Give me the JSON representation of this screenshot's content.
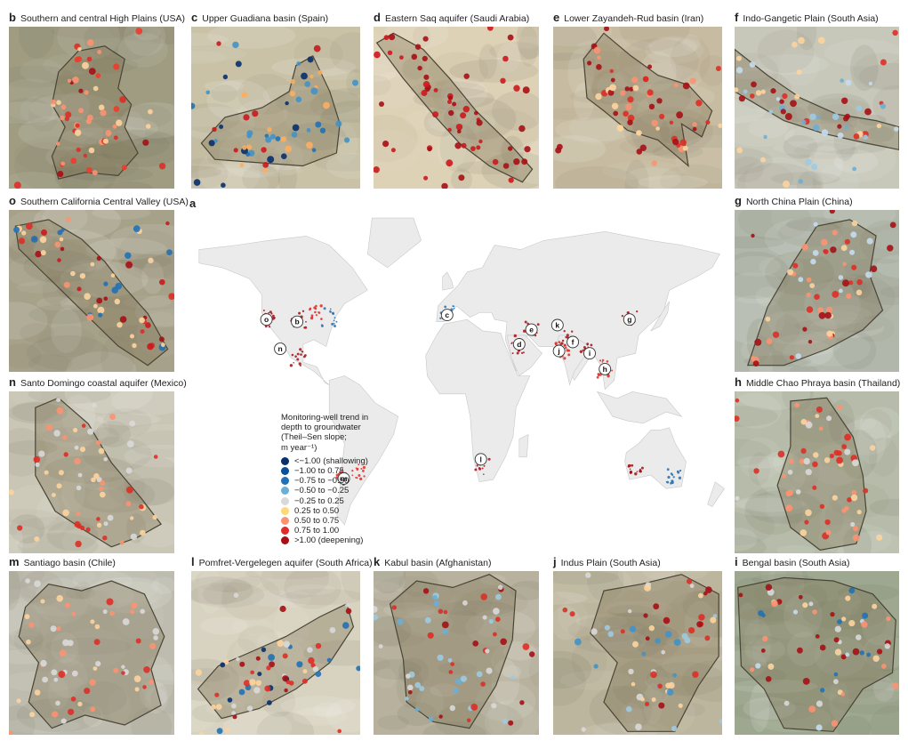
{
  "panels": [
    {
      "id": "b",
      "letter": "b",
      "title": "Southern and central High Plains (USA)",
      "bg": "#9f9c82",
      "shape": "highplains",
      "palette": [
        "#a50f15",
        "#de2d26",
        "#fc9272",
        "#fdd49e",
        "#ef3b2c"
      ]
    },
    {
      "id": "c",
      "letter": "c",
      "title": "Upper Guadiana basin (Spain)",
      "bg": "#c9c2a7",
      "shape": "guadiana",
      "palette": [
        "#08306b",
        "#2171b5",
        "#4292c6",
        "#cb181d",
        "#fdae61"
      ]
    },
    {
      "id": "d",
      "letter": "d",
      "title": "Eastern Saq aquifer (Saudi Arabia)",
      "bg": "#ddd1b6",
      "shape": "saq",
      "palette": [
        "#a50f15",
        "#cb181d"
      ]
    },
    {
      "id": "e",
      "letter": "e",
      "title": "Lower Zayandeh-Rud basin (Iran)",
      "bg": "#c7bca1",
      "shape": "zayandeh",
      "palette": [
        "#a50f15",
        "#de2d26",
        "#fc9272",
        "#fdd49e"
      ]
    },
    {
      "id": "f",
      "letter": "f",
      "title": "Indo-Gangetic Plain (South Asia)",
      "bg": "#c7c8ba",
      "shape": "gangetic",
      "palette": [
        "#a50f15",
        "#de2d26",
        "#9ecae1",
        "#c6dbef",
        "#fdd49e",
        "#6baed6"
      ]
    },
    {
      "id": "o",
      "letter": "o",
      "title": "Southern California Central Valley (USA)",
      "bg": "#a6a189",
      "shape": "california",
      "palette": [
        "#a50f15",
        "#de2d26",
        "#cb181d",
        "#fc9272",
        "#fdd49e",
        "#2171b5"
      ]
    },
    {
      "id": "g",
      "letter": "g",
      "title": "North China Plain (China)",
      "bg": "#b1b8ab",
      "shape": "northchina",
      "palette": [
        "#a50f15",
        "#de2d26",
        "#fc9272",
        "#c6dbef",
        "#fdd49e"
      ]
    },
    {
      "id": "n",
      "letter": "n",
      "title": "Santo Domingo coastal aquifer (Mexico)",
      "bg": "#c9c6b5",
      "shape": "santodomingo",
      "palette": [
        "#d9d9d9",
        "#fdd49e",
        "#fc9272",
        "#de2d26"
      ]
    },
    {
      "id": "h",
      "letter": "h",
      "title": "Middle Chao Phraya basin (Thailand)",
      "bg": "#b6bca9",
      "shape": "chaophraya",
      "palette": [
        "#fc9272",
        "#de2d26",
        "#d9d9d9",
        "#fdd49e"
      ]
    },
    {
      "id": "m",
      "letter": "m",
      "title": "Santiago basin (Chile)",
      "bg": "#bdbcae",
      "shape": "santiago",
      "palette": [
        "#de2d26",
        "#fc9272",
        "#fdd49e",
        "#d9d9d9"
      ]
    },
    {
      "id": "l",
      "letter": "l",
      "title": "Pomfret-Vergelegen aquifer (South Africa)",
      "bg": "#d8d3c0",
      "shape": "pomfret",
      "palette": [
        "#08306b",
        "#2171b5",
        "#a50f15",
        "#de2d26",
        "#fdd49e",
        "#d9d9d9"
      ]
    },
    {
      "id": "k",
      "letter": "k",
      "title": "Kabul basin (Afghanistan)",
      "bg": "#b7b19d",
      "shape": "kabul",
      "palette": [
        "#6baed6",
        "#9ecae1",
        "#de2d26",
        "#a50f15",
        "#d9d9d9"
      ]
    },
    {
      "id": "j",
      "letter": "j",
      "title": "Indus Plain (South Asia)",
      "bg": "#bdb69e",
      "shape": "indus",
      "palette": [
        "#fdd49e",
        "#d9d9d9",
        "#9ecae1",
        "#4292c6",
        "#a50f15",
        "#de2d26"
      ]
    },
    {
      "id": "i",
      "letter": "i",
      "title": "Bengal basin (South Asia)",
      "bg": "#9ea890",
      "shape": "bengal",
      "palette": [
        "#d9d9d9",
        "#fdd49e",
        "#fc9272",
        "#a50f15",
        "#2171b5",
        "#c6dbef"
      ]
    }
  ],
  "world": {
    "label": "a",
    "land": "#ebebeb",
    "markers": [
      {
        "id": "o",
        "lon": -121,
        "lat": 37
      },
      {
        "id": "b",
        "lon": -101,
        "lat": 36
      },
      {
        "id": "n",
        "lon": -112,
        "lat": 24
      },
      {
        "id": "c",
        "lon": -3,
        "lat": 39
      },
      {
        "id": "e",
        "lon": 52,
        "lat": 32.5
      },
      {
        "id": "k",
        "lon": 69,
        "lat": 34.5
      },
      {
        "id": "g",
        "lon": 116,
        "lat": 37
      },
      {
        "id": "f",
        "lon": 79,
        "lat": 27
      },
      {
        "id": "j",
        "lon": 70,
        "lat": 23
      },
      {
        "id": "d",
        "lon": 44,
        "lat": 26
      },
      {
        "id": "i",
        "lon": 90,
        "lat": 22
      },
      {
        "id": "h",
        "lon": 100,
        "lat": 15
      },
      {
        "id": "l",
        "lon": 19,
        "lat": -25
      },
      {
        "id": "m",
        "lon": -70.5,
        "lat": -33.5
      }
    ]
  },
  "legend": {
    "title_lines": [
      "Monitoring-well trend in",
      "depth to groundwater",
      "(Theil–Sen slope;",
      "m year⁻¹)"
    ],
    "classes": [
      {
        "label": "<−1.00 (shallowing)",
        "color": "#08306b"
      },
      {
        "label": "−1.00 to 0.75",
        "color": "#08519c"
      },
      {
        "label": "−0.75 to −0.50",
        "color": "#2171b5"
      },
      {
        "label": "−0.50 to −0.25",
        "color": "#6baed6"
      },
      {
        "label": "−0.25 to 0.25",
        "color": "#d9d9d9"
      },
      {
        "label": "0.25 to 0.50",
        "color": "#fed976"
      },
      {
        "label": "0.50 to 0.75",
        "color": "#fc9272"
      },
      {
        "label": "0.75 to 1.00",
        "color": "#de2d26"
      },
      {
        "label": ">1.00 (deepening)",
        "color": "#a50f15"
      }
    ]
  }
}
